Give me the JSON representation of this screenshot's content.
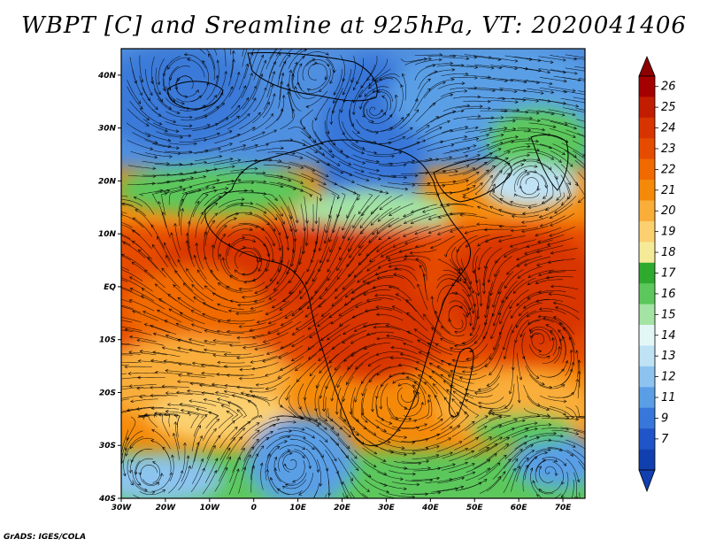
{
  "title": "WBPT [C] and Sreamline at 925hPa, VT: 2020041406",
  "credit": "GrADS: IGES/COLA",
  "map": {
    "latitude_labels": [
      "40N",
      "30N",
      "20N",
      "10N",
      "EQ",
      "10S",
      "20S",
      "30S",
      "40S"
    ],
    "longitude_labels": [
      "30W",
      "20W",
      "10W",
      "0",
      "10E",
      "20E",
      "30E",
      "40E",
      "50E",
      "60E",
      "70E"
    ],
    "lat_range": [
      -40,
      45
    ],
    "lon_range": [
      -30,
      75
    ]
  },
  "colorbar": {
    "labels": [
      "26",
      "25",
      "24",
      "23",
      "22",
      "21",
      "20",
      "19",
      "18",
      "17",
      "16",
      "15",
      "14",
      "13",
      "12",
      "11",
      "9",
      "7"
    ],
    "colors": [
      "#a50000",
      "#c21d00",
      "#d83400",
      "#e64c00",
      "#f06a00",
      "#f58a0a",
      "#f9ae3a",
      "#fbd070",
      "#f5ea98",
      "#2faa2f",
      "#5cc85c",
      "#a3e3a3",
      "#e4f7f7",
      "#bfe2f5",
      "#8cc4ef",
      "#5a9fe6",
      "#3777d9",
      "#1f55c8",
      "#1040b0"
    ],
    "top_arrow_color": "#8c0000",
    "bottom_arrow_color": "#1040b0"
  }
}
